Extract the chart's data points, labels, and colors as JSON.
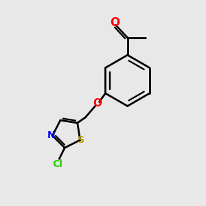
{
  "background_color": "#e8e8e8",
  "line_color": "#000000",
  "atom_colors": {
    "O_carbonyl": "#ff0000",
    "O_ether": "#ff0000",
    "N": "#0000ff",
    "S": "#b8a000",
    "Cl": "#22cc00"
  },
  "line_width": 2.0,
  "font_size_atoms": 10,
  "figsize": [
    3.0,
    3.0
  ],
  "dpi": 100,
  "xlim": [
    0,
    10
  ],
  "ylim": [
    0,
    10
  ]
}
